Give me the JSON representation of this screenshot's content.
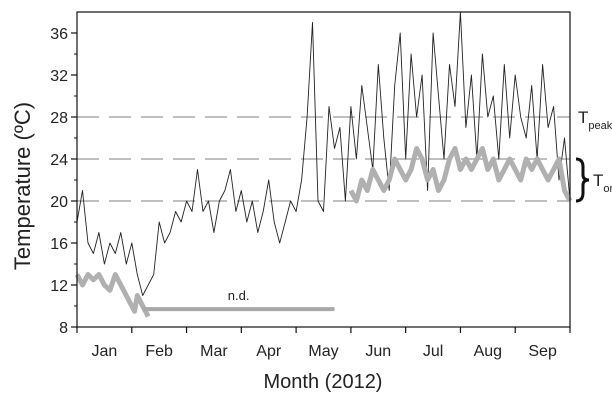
{
  "chart_data": {
    "type": "line",
    "xlabel": "Month (2012)",
    "ylabel": "Temperature (ºC)",
    "ylim": [
      8,
      38
    ],
    "xlim": [
      0,
      9
    ],
    "y_ticks": [
      8,
      12,
      16,
      20,
      24,
      28,
      32,
      36
    ],
    "x_month_labels": [
      "Jan",
      "Feb",
      "Mar",
      "Apr",
      "May",
      "Jun",
      "Jul",
      "Aug",
      "Sep"
    ],
    "reference_lines": [
      {
        "y": 28,
        "label_main": "T",
        "label_sub": "peak"
      },
      {
        "y": 24,
        "label_main": "",
        "label_sub": ""
      },
      {
        "y": 20,
        "label_main": "",
        "label_sub": ""
      }
    ],
    "brace": {
      "y_from": 20,
      "y_to": 24,
      "label_main": "T",
      "label_sub": "on"
    },
    "annotation": {
      "text": "n.d.",
      "x_from": 1.2,
      "x_to": 4.7,
      "y": 9.7
    },
    "series": [
      {
        "style": "thin-black",
        "x": [
          0.0,
          0.1,
          0.2,
          0.3,
          0.4,
          0.5,
          0.6,
          0.7,
          0.8,
          0.9,
          1.0,
          1.1,
          1.2,
          1.3,
          1.4,
          1.5,
          1.6,
          1.7,
          1.8,
          1.9,
          2.0,
          2.1,
          2.2,
          2.3,
          2.4,
          2.5,
          2.6,
          2.7,
          2.8,
          2.9,
          3.0,
          3.1,
          3.2,
          3.3,
          3.4,
          3.5,
          3.6,
          3.7,
          3.8,
          3.9,
          4.0,
          4.1,
          4.2,
          4.3,
          4.4,
          4.5,
          4.6,
          4.7,
          4.8,
          4.9,
          5.0,
          5.1,
          5.2,
          5.3,
          5.4,
          5.5,
          5.6,
          5.7,
          5.8,
          5.9,
          6.0,
          6.1,
          6.2,
          6.3,
          6.4,
          6.5,
          6.6,
          6.7,
          6.8,
          6.9,
          7.0,
          7.1,
          7.2,
          7.3,
          7.4,
          7.5,
          7.6,
          7.7,
          7.8,
          7.9,
          8.0,
          8.1,
          8.2,
          8.3,
          8.4,
          8.5,
          8.6,
          8.7,
          8.8,
          8.9,
          9.0
        ],
        "y": [
          18,
          21,
          16,
          15,
          17,
          14,
          16,
          15,
          17,
          14,
          16,
          13,
          11,
          12,
          13,
          18,
          16,
          17,
          19,
          18,
          20,
          19,
          23,
          19,
          20,
          17,
          20,
          21,
          23,
          19,
          21,
          18,
          20,
          17,
          19,
          22,
          18,
          16,
          18,
          20,
          19,
          22,
          28,
          37,
          20,
          19,
          29,
          25,
          27,
          20,
          29,
          24,
          31,
          27,
          23,
          33,
          26,
          21,
          31,
          36,
          24,
          34,
          28,
          32,
          21,
          36,
          30,
          24,
          33,
          29,
          38,
          27,
          32,
          24,
          34,
          28,
          30,
          24,
          33,
          26,
          32,
          28,
          26,
          31,
          24,
          33,
          27,
          29,
          22,
          26,
          20
        ]
      },
      {
        "style": "thick-gray",
        "x": [
          0.0,
          0.1,
          0.2,
          0.3,
          0.4,
          0.5,
          0.6,
          0.7,
          0.8,
          0.9,
          1.0,
          1.05,
          1.1,
          1.2,
          1.3,
          5.0,
          5.1,
          5.2,
          5.3,
          5.4,
          5.5,
          5.6,
          5.7,
          5.8,
          5.9,
          6.0,
          6.1,
          6.2,
          6.3,
          6.4,
          6.5,
          6.6,
          6.7,
          6.8,
          6.9,
          7.0,
          7.1,
          7.2,
          7.3,
          7.4,
          7.5,
          7.6,
          7.7,
          7.8,
          7.9,
          8.0,
          8.1,
          8.2,
          8.3,
          8.4,
          8.5,
          8.6,
          8.7,
          8.8,
          8.9,
          9.0
        ],
        "y": [
          13,
          12,
          13,
          12.5,
          13,
          12,
          11.5,
          13,
          12,
          11,
          10,
          9.5,
          11,
          10,
          9,
          21,
          20,
          22,
          21,
          23,
          22,
          21,
          22,
          24,
          23,
          22,
          23,
          25,
          24,
          22,
          23,
          21,
          22,
          24,
          25,
          23,
          24,
          23,
          24,
          25,
          23,
          24,
          22,
          23,
          24,
          23,
          22,
          24,
          23,
          24,
          23,
          22,
          23,
          24,
          21,
          20
        ]
      }
    ]
  }
}
